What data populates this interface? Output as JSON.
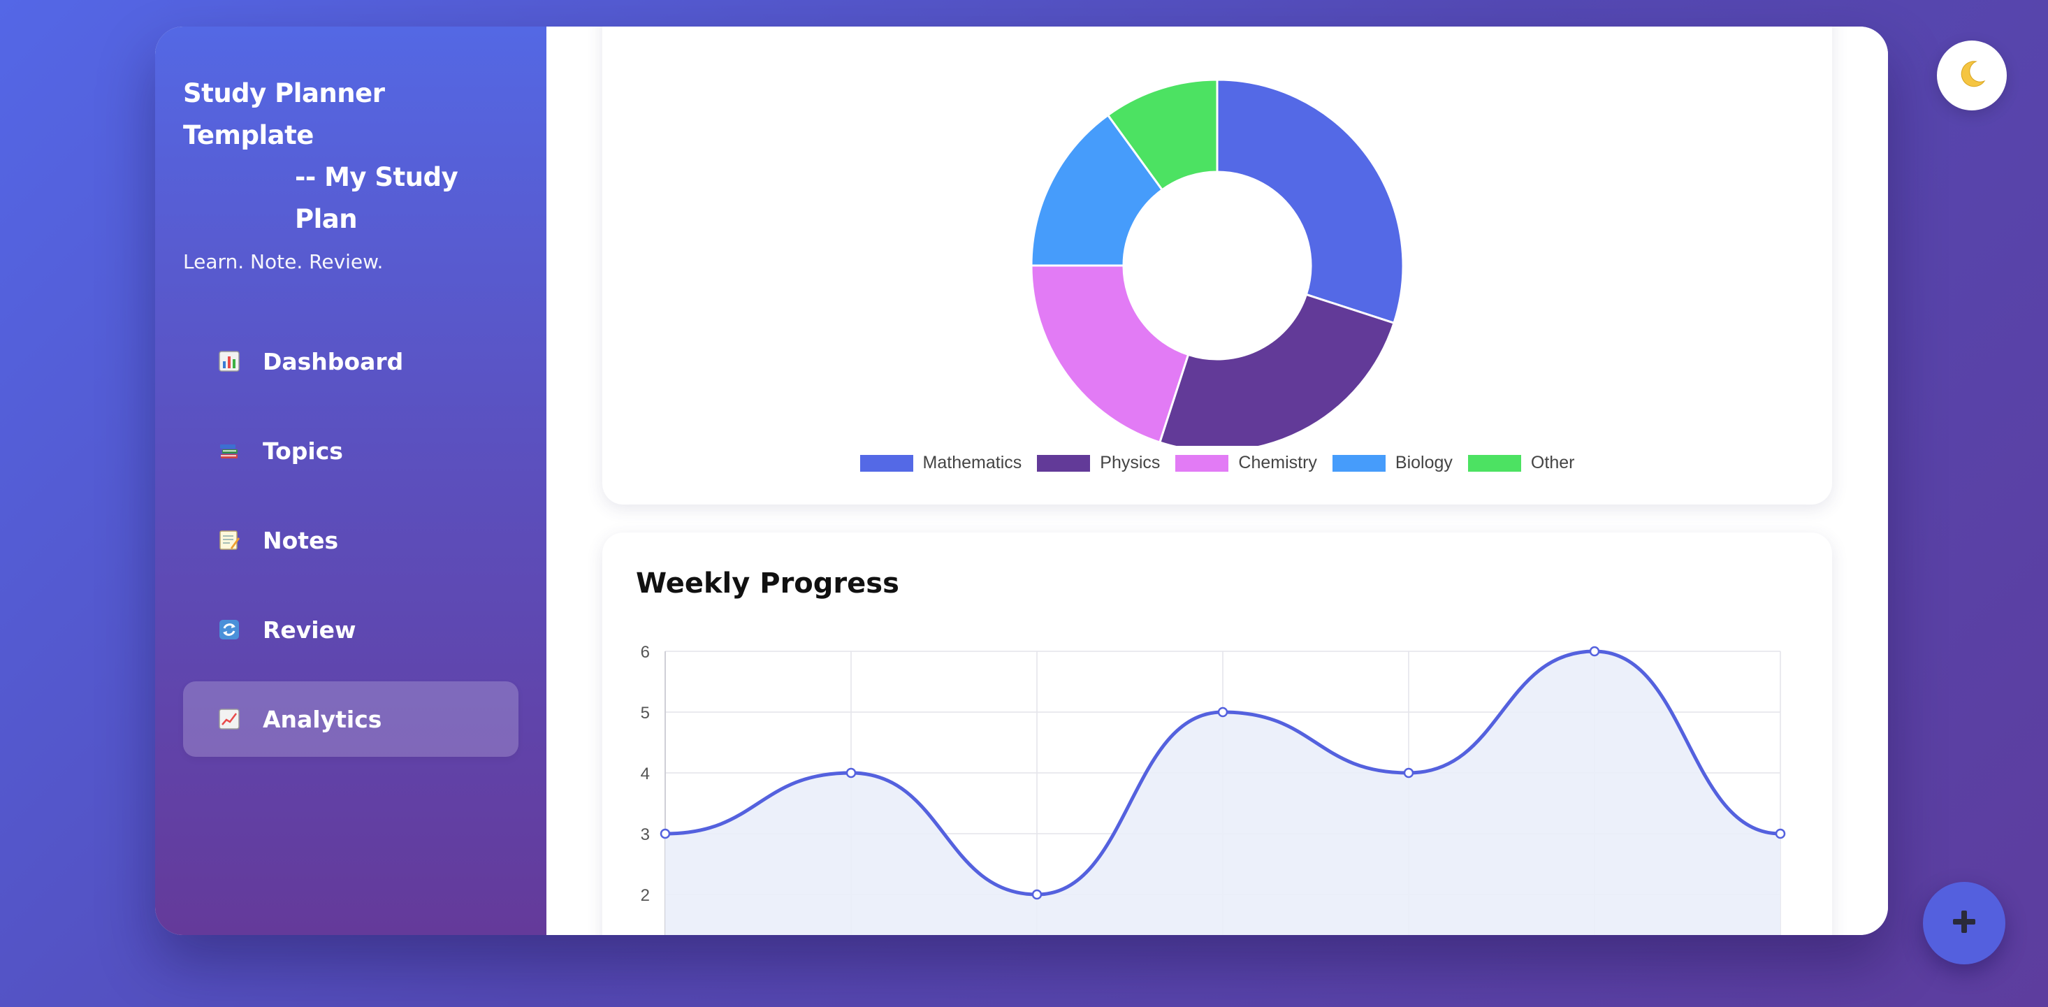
{
  "sidebar": {
    "title_line1": "Study Planner Template",
    "title_line2": "-- My Study Plan",
    "tagline": "Learn. Note. Review.",
    "items": [
      {
        "label": "Dashboard",
        "icon": "bar-chart-icon",
        "active": false
      },
      {
        "label": "Topics",
        "icon": "books-icon",
        "active": false
      },
      {
        "label": "Notes",
        "icon": "memo-icon",
        "active": false
      },
      {
        "label": "Review",
        "icon": "refresh-icon",
        "active": false
      },
      {
        "label": "Analytics",
        "icon": "line-chart-icon",
        "active": true
      }
    ]
  },
  "header_actions": {
    "theme_toggle_icon": "moon-icon",
    "fab_icon": "plus-icon"
  },
  "colors": {
    "accent": "#5468e4",
    "mathematics": "#5469e6",
    "physics": "#623a98",
    "chemistry": "#e27bf5",
    "biology": "#469cfb",
    "other": "#4ce262",
    "line": "#5461de",
    "line_fill": "#eaeefa"
  },
  "chart_data": [
    {
      "type": "pie",
      "donut": true,
      "title": "",
      "categories": [
        "Mathematics",
        "Physics",
        "Chemistry",
        "Biology",
        "Other"
      ],
      "values": [
        30,
        25,
        20,
        15,
        10
      ],
      "legend_position": "bottom"
    },
    {
      "type": "area",
      "title": "Weekly Progress",
      "x": [
        "",
        "",
        "",
        "",
        "",
        "",
        ""
      ],
      "series": [
        {
          "values": [
            3,
            4,
            2,
            5,
            4,
            6,
            3
          ]
        }
      ],
      "yticks": [
        2,
        3,
        4,
        5,
        6
      ],
      "ylim": [
        1,
        6
      ],
      "grid": true,
      "curve": "smooth"
    }
  ]
}
